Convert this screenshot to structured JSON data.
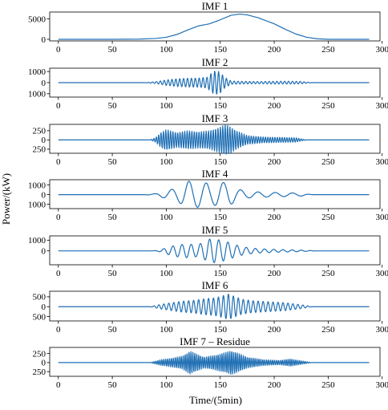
{
  "ylabel": "Power/(kW)",
  "xlabel": "Time/(5min)",
  "chart_data": {
    "type": "line",
    "series_color": "#1f6fb4",
    "xlim": [
      -8,
      298
    ],
    "x_ticks": [
      0,
      50,
      100,
      150,
      200,
      250,
      300
    ],
    "x_tick_labels": [
      "0",
      "50",
      "100",
      "150",
      "200",
      "250",
      "300"
    ],
    "panels": [
      {
        "title": "IMF 1",
        "ylim": [
          -400,
          6700
        ],
        "y_ticks": [
          0,
          5000
        ],
        "y_tick_labels": [
          "0",
          "5000"
        ],
        "x": [
          0,
          50,
          75,
          90,
          100,
          110,
          120,
          130,
          140,
          150,
          160,
          168,
          175,
          185,
          200,
          210,
          220,
          230,
          240,
          250,
          288
        ],
        "values": [
          0,
          0,
          50,
          200,
          500,
          1200,
          2300,
          3300,
          3800,
          4800,
          5900,
          6200,
          6000,
          5300,
          3800,
          2500,
          1300,
          500,
          120,
          0,
          0
        ]
      },
      {
        "title": "IMF 2",
        "ylim": [
          -1300,
          1300
        ],
        "y_ticks": [
          1000,
          0,
          -1000
        ],
        "y_tick_labels": [
          "1000",
          "0",
          "1000"
        ],
        "x_range": [
          0,
          288
        ],
        "points": 700,
        "wave": {
          "period": 3.6,
          "envelope": [
            [
              0,
              0
            ],
            [
              80,
              0
            ],
            [
              90,
              80
            ],
            [
              100,
              250
            ],
            [
              110,
              350
            ],
            [
              120,
              400
            ],
            [
              130,
              420
            ],
            [
              138,
              500
            ],
            [
              142,
              900
            ],
            [
              146,
              1100
            ],
            [
              150,
              950
            ],
            [
              154,
              500
            ],
            [
              160,
              150
            ],
            [
              170,
              120
            ],
            [
              185,
              100
            ],
            [
              200,
              120
            ],
            [
              215,
              130
            ],
            [
              225,
              110
            ],
            [
              235,
              0
            ],
            [
              288,
              0
            ]
          ]
        }
      },
      {
        "title": "IMF 3",
        "ylim": [
          -360,
          420
        ],
        "y_ticks": [
          250,
          0,
          -250
        ],
        "y_tick_labels": [
          "250",
          "0",
          "250"
        ],
        "x_range": [
          0,
          288
        ],
        "points": 900,
        "wave": {
          "period": 2.2,
          "envelope": [
            [
              0,
              0
            ],
            [
              85,
              0
            ],
            [
              90,
              60
            ],
            [
              95,
              200
            ],
            [
              100,
              280
            ],
            [
              110,
              200
            ],
            [
              120,
              250
            ],
            [
              130,
              220
            ],
            [
              140,
              250
            ],
            [
              145,
              300
            ],
            [
              150,
              350
            ],
            [
              155,
              420
            ],
            [
              160,
              350
            ],
            [
              165,
              250
            ],
            [
              175,
              120
            ],
            [
              190,
              80
            ],
            [
              205,
              70
            ],
            [
              220,
              60
            ],
            [
              230,
              0
            ],
            [
              288,
              0
            ]
          ]
        }
      },
      {
        "title": "IMF 4",
        "ylim": [
          -1450,
          1550
        ],
        "y_ticks": [
          1000,
          0,
          -1000
        ],
        "y_tick_labels": [
          "1000",
          "0",
          "1000"
        ],
        "x_range": [
          0,
          288
        ],
        "points": 700,
        "wave": {
          "period": 16,
          "phase": 5,
          "envelope": [
            [
              0,
              0
            ],
            [
              80,
              0
            ],
            [
              90,
              100
            ],
            [
              100,
              400
            ],
            [
              110,
              700
            ],
            [
              120,
              1400
            ],
            [
              130,
              1300
            ],
            [
              138,
              1200
            ],
            [
              142,
              1000
            ],
            [
              150,
              1300
            ],
            [
              158,
              1200
            ],
            [
              165,
              600
            ],
            [
              175,
              350
            ],
            [
              190,
              250
            ],
            [
              210,
              200
            ],
            [
              225,
              150
            ],
            [
              235,
              0
            ],
            [
              288,
              0
            ]
          ]
        }
      },
      {
        "title": "IMF 5",
        "ylim": [
          -1300,
          1400
        ],
        "y_ticks": [
          1000,
          0
        ],
        "y_tick_labels": [
          "1000",
          "0"
        ],
        "x_range": [
          0,
          288
        ],
        "points": 800,
        "wave": {
          "period": 8.5,
          "phase": 2,
          "envelope": [
            [
              0,
              0
            ],
            [
              88,
              0
            ],
            [
              95,
              100
            ],
            [
              100,
              300
            ],
            [
              110,
              550
            ],
            [
              120,
              650
            ],
            [
              128,
              550
            ],
            [
              135,
              800
            ],
            [
              141,
              1150
            ],
            [
              148,
              1050
            ],
            [
              155,
              900
            ],
            [
              163,
              600
            ],
            [
              172,
              350
            ],
            [
              185,
              200
            ],
            [
              205,
              120
            ],
            [
              225,
              70
            ],
            [
              240,
              0
            ],
            [
              288,
              0
            ]
          ]
        }
      },
      {
        "title": "IMF 6",
        "ylim": [
          -720,
          780
        ],
        "y_ticks": [
          500,
          0,
          -500
        ],
        "y_tick_labels": [
          "500",
          "0",
          "500"
        ],
        "x_range": [
          0,
          288
        ],
        "points": 900,
        "wave": {
          "period": 4.6,
          "envelope": [
            [
              0,
              0
            ],
            [
              85,
              0
            ],
            [
              95,
              120
            ],
            [
              105,
              200
            ],
            [
              115,
              280
            ],
            [
              125,
              320
            ],
            [
              135,
              400
            ],
            [
              145,
              450
            ],
            [
              152,
              550
            ],
            [
              158,
              650
            ],
            [
              162,
              550
            ],
            [
              170,
              380
            ],
            [
              180,
              300
            ],
            [
              195,
              250
            ],
            [
              210,
              200
            ],
            [
              225,
              100
            ],
            [
              235,
              0
            ],
            [
              288,
              0
            ]
          ]
        }
      },
      {
        "title": "IMF 7 – Residue",
        "ylim": [
          -380,
          420
        ],
        "y_ticks": [
          250,
          0,
          -250
        ],
        "y_tick_labels": [
          "250",
          "0",
          "250"
        ],
        "x_range": [
          0,
          288
        ],
        "points": 1100,
        "wave": {
          "period": 1.8,
          "envelope": [
            [
              0,
              0
            ],
            [
              85,
              0
            ],
            [
              95,
              80
            ],
            [
              105,
              120
            ],
            [
              115,
              180
            ],
            [
              122,
              320
            ],
            [
              127,
              250
            ],
            [
              135,
              150
            ],
            [
              145,
              200
            ],
            [
              155,
              280
            ],
            [
              160,
              330
            ],
            [
              165,
              280
            ],
            [
              175,
              150
            ],
            [
              190,
              80
            ],
            [
              205,
              60
            ],
            [
              215,
              100
            ],
            [
              225,
              50
            ],
            [
              235,
              0
            ],
            [
              288,
              0
            ]
          ]
        }
      }
    ]
  }
}
